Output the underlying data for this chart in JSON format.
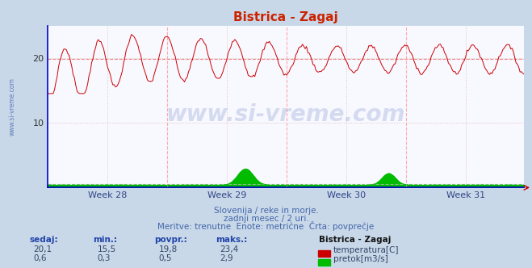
{
  "title": "Bistrica - Zagaj",
  "fig_bg_color": "#c8d8e8",
  "plot_bg_color": "#f8f8ff",
  "grid_color": "#ddbbbb",
  "vert_line_color": "#ffaaaa",
  "title_color": "#cc2200",
  "n_points": 360,
  "temp_min": 15.5,
  "temp_max": 23.4,
  "temp_avg": 19.8,
  "temp_current": 20.1,
  "flow_min": 0.3,
  "flow_max": 2.9,
  "flow_avg": 0.5,
  "flow_current": 0.6,
  "temp_color": "#cc0000",
  "flow_color": "#00bb00",
  "avg_line_color": "#ee8888",
  "flow_avg_color": "#88bb88",
  "axis_color": "#0000cc",
  "watermark_color": "#3355aa",
  "watermark_alpha": 0.18,
  "left_label_color": "#3355aa",
  "xlabel_weeks": [
    "Week 28",
    "Week 29",
    "Week 30",
    "Week 31"
  ],
  "xlabel_color": "#334488",
  "ytick_vals": [
    10,
    20
  ],
  "ylim_max": 25,
  "subtitle1": "Slovenija / reke in morje.",
  "subtitle2": "zadnji mesec / 2 uri.",
  "subtitle3": "Meritve: trenutne  Enote: metrične  Črta: povprečje",
  "subtitle_color": "#4466aa",
  "legend_title": "Bistrica - Zagaj",
  "legend_temp": "temperatura[C]",
  "legend_flow": "pretok[m3/s]",
  "table_headers": [
    "sedaj:",
    "min.:",
    "povpr.:",
    "maks.:"
  ],
  "table_header_color": "#2244aa",
  "table_val_color": "#334466",
  "table_temp": [
    "20,1",
    "15,5",
    "19,8",
    "23,4"
  ],
  "table_flow": [
    "0,6",
    "0,3",
    "0,5",
    "2,9"
  ],
  "legend_title_color": "#111111"
}
